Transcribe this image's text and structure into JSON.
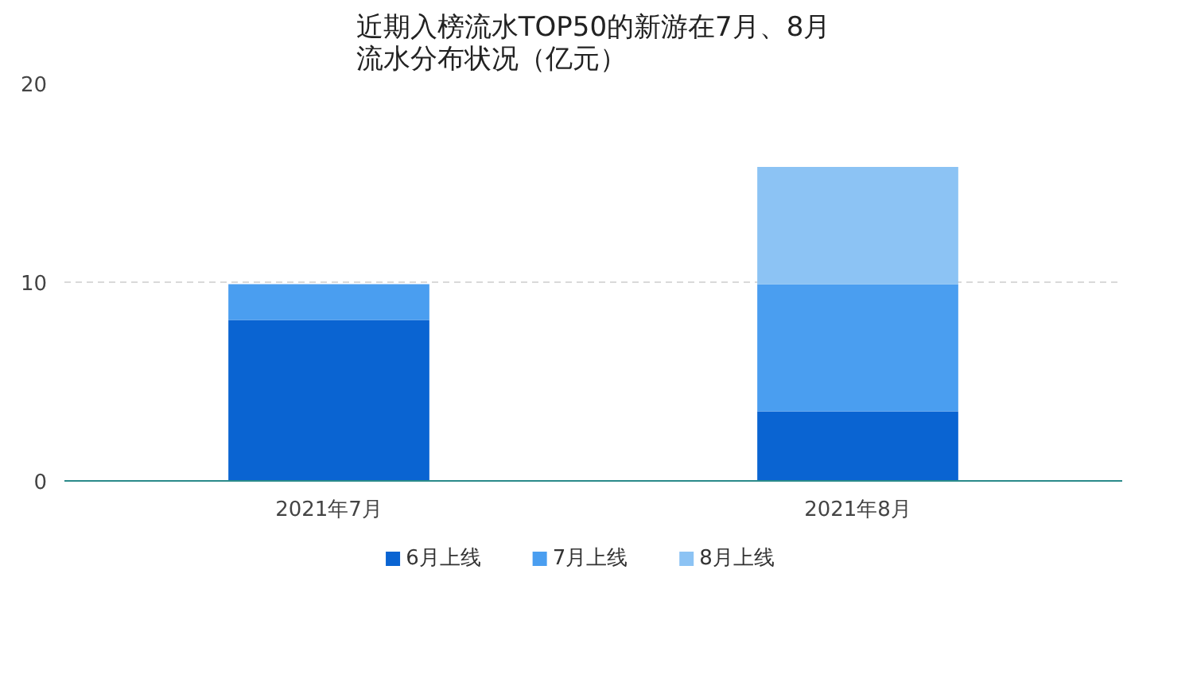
{
  "chart_data": {
    "type": "bar",
    "title": "近期入榜流水TOP50的新游在7月、8月流水分布状况（亿元）",
    "categories": [
      "2021年7月",
      "2021年8月"
    ],
    "stacked": true,
    "series": [
      {
        "name": "6月上线",
        "color": "#0a64d2",
        "values": [
          8.1,
          3.5
        ]
      },
      {
        "name": "7月上线",
        "color": "#4a9ef0",
        "values": [
          1.8,
          6.4
        ]
      },
      {
        "name": "8月上线",
        "color": "#8cc3f4",
        "values": [
          null,
          5.9
        ]
      }
    ],
    "ylim": [
      0,
      20
    ],
    "yticks": [
      0,
      10,
      20
    ],
    "grid": "y",
    "legend": "bottom"
  }
}
